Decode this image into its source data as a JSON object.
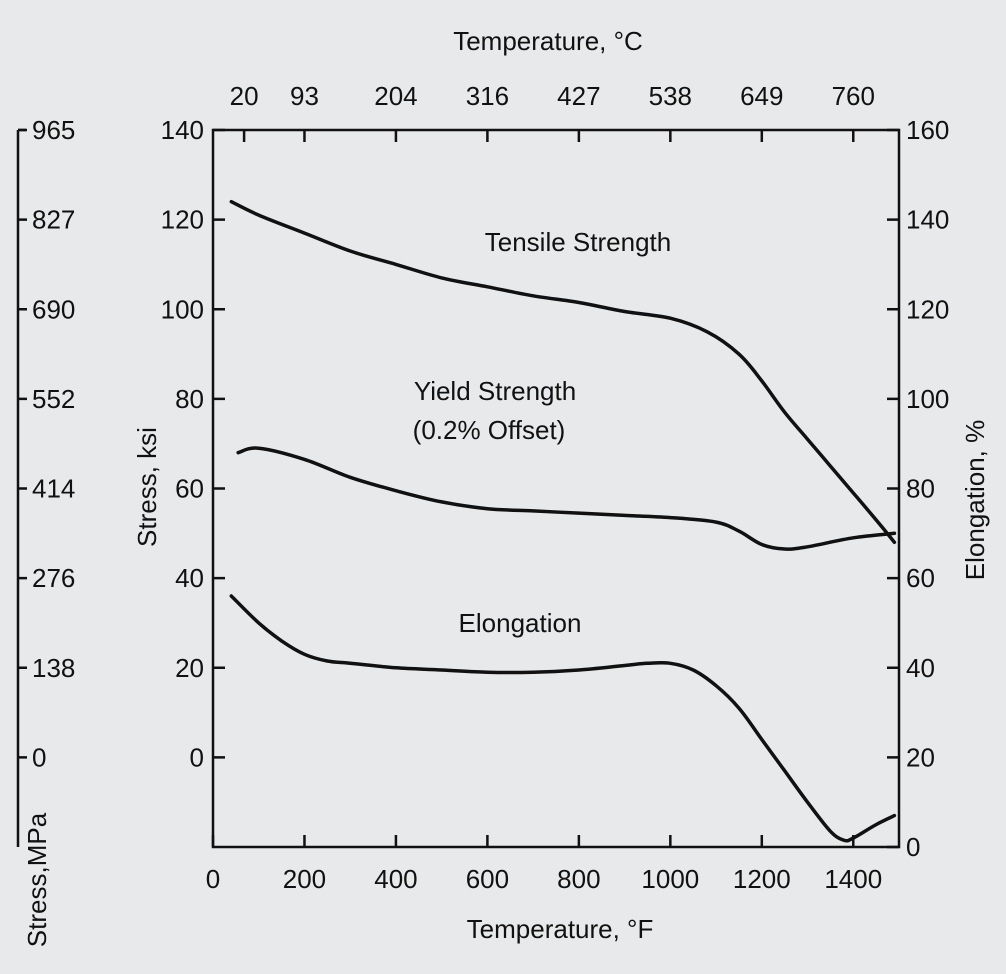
{
  "chart_data": {
    "type": "line",
    "title": "",
    "xlabel": "Temperature, °F",
    "x_top_label": "Temperature, °C",
    "ylabel": "Stress, ksi",
    "y_right_label": "Elongation, %",
    "y_far_left_label": "Stress,MPa",
    "xlim": [
      0,
      1500
    ],
    "ylim": [
      -20,
      140
    ],
    "y_right_lim": [
      0,
      160
    ],
    "x_ticks": [
      0,
      200,
      400,
      600,
      800,
      1000,
      1200,
      1400
    ],
    "x_tick_labels": [
      "0",
      "200",
      "400",
      "600",
      "800",
      "1000",
      "1200",
      "1400"
    ],
    "y_ticks": [
      0,
      20,
      40,
      60,
      80,
      100,
      120,
      140
    ],
    "y_tick_labels": [
      "0",
      "20",
      "40",
      "60",
      "80",
      "100",
      "120",
      "140"
    ],
    "y_right_ticks": [
      0,
      20,
      40,
      60,
      80,
      100,
      120,
      140,
      160
    ],
    "y_right_tick_labels": [
      "0",
      "20",
      "40",
      "60",
      "80",
      "100",
      "120",
      "140",
      "160"
    ],
    "top_ticks_f": [
      68,
      200,
      400,
      600,
      800,
      1000,
      1200,
      1400
    ],
    "top_tick_labels": [
      "20",
      "93",
      "204",
      "316",
      "427",
      "538",
      "649",
      "760"
    ],
    "mpa_ticks_ksi": [
      0,
      20,
      40,
      60,
      80,
      100,
      120,
      140
    ],
    "mpa_tick_labels": [
      "0",
      "138",
      "276",
      "414",
      "552",
      "690",
      "827",
      "965"
    ],
    "grid": false,
    "series": [
      {
        "name": "Tensile Strength",
        "axis": "left",
        "x": [
          40,
          100,
          200,
          300,
          400,
          500,
          600,
          700,
          800,
          900,
          1000,
          1080,
          1150,
          1200,
          1250,
          1300,
          1350,
          1400,
          1450,
          1490
        ],
        "y": [
          124,
          121,
          117,
          113,
          110,
          107,
          105,
          103,
          101.5,
          99.5,
          98,
          95,
          90,
          84,
          77,
          71,
          65,
          59,
          53,
          48
        ]
      },
      {
        "name": "Yield Strength (0.2% Offset)",
        "axis": "left",
        "x": [
          55,
          100,
          200,
          300,
          400,
          500,
          600,
          700,
          800,
          900,
          1000,
          1100,
          1150,
          1200,
          1250,
          1300,
          1400,
          1490
        ],
        "y": [
          68,
          69,
          66.5,
          62.5,
          59.5,
          57,
          55.5,
          55,
          54.5,
          54,
          53.5,
          52.5,
          50.5,
          47.5,
          46.5,
          47,
          49,
          50
        ]
      },
      {
        "name": "Elongation",
        "axis": "right",
        "x": [
          40,
          100,
          150,
          200,
          250,
          300,
          400,
          500,
          600,
          700,
          800,
          900,
          950,
          1000,
          1050,
          1100,
          1150,
          1200,
          1250,
          1300,
          1350,
          1380,
          1400,
          1450,
          1490
        ],
        "y": [
          56,
          50,
          46,
          43,
          41.5,
          41,
          40,
          39.5,
          39,
          39,
          39.5,
          40.5,
          41,
          41,
          39.5,
          36,
          31,
          24,
          17,
          10,
          3.5,
          1.5,
          2,
          5,
          7
        ]
      }
    ]
  }
}
